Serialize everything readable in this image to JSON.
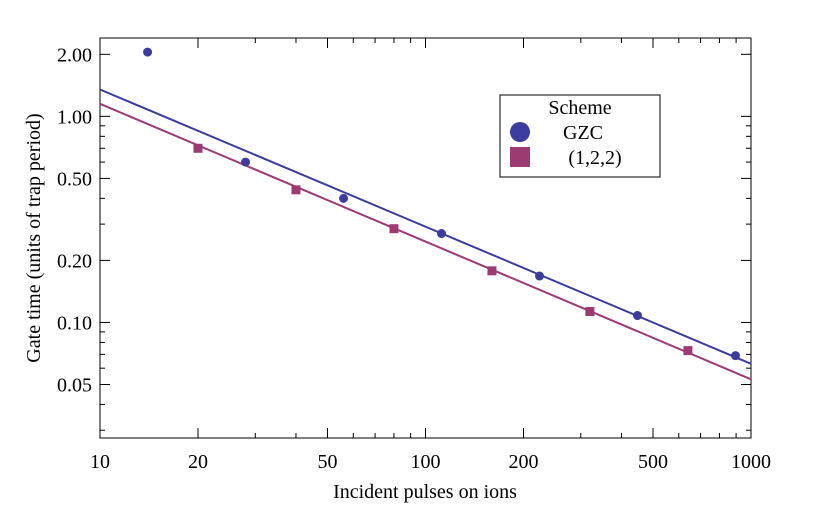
{
  "chart_data": {
    "type": "scatter",
    "xscale": "log",
    "yscale": "log",
    "xlim": [
      10,
      1000
    ],
    "ylim": [
      0.0275,
      2.4
    ],
    "xlabel": "Incident pulses on ions",
    "ylabel": "Gate time (units of trap period)",
    "x_ticks": [
      {
        "value": 10,
        "label": "10"
      },
      {
        "value": 20,
        "label": "20"
      },
      {
        "value": 50,
        "label": "50"
      },
      {
        "value": 100,
        "label": "100"
      },
      {
        "value": 200,
        "label": "200"
      },
      {
        "value": 500,
        "label": "500"
      },
      {
        "value": 1000,
        "label": "1000"
      }
    ],
    "y_ticks": [
      {
        "value": 2.0,
        "label": "2.00"
      },
      {
        "value": 1.0,
        "label": "1.00"
      },
      {
        "value": 0.5,
        "label": "0.50"
      },
      {
        "value": 0.2,
        "label": "0.20"
      },
      {
        "value": 0.1,
        "label": "0.10"
      },
      {
        "value": 0.05,
        "label": "0.05"
      }
    ],
    "legend": {
      "title": "Scheme",
      "position": "top-right",
      "entries": [
        "GZC",
        "(1,2,2)"
      ]
    },
    "series": [
      {
        "name": "GZC",
        "marker": "circle",
        "color": "#3b3c9e",
        "x": [
          14,
          28,
          56,
          112,
          224,
          448,
          896
        ],
        "y": [
          2.05,
          0.6,
          0.4,
          0.27,
          0.168,
          0.108,
          0.069
        ],
        "fit": {
          "x": [
            10,
            1000
          ],
          "y": [
            1.35,
            0.063
          ]
        }
      },
      {
        "name": "(1,2,2)",
        "marker": "square",
        "color": "#9c3a72",
        "x": [
          20,
          40,
          80,
          160,
          320,
          640
        ],
        "y": [
          0.7,
          0.44,
          0.285,
          0.178,
          0.113,
          0.073
        ],
        "fit": {
          "x": [
            10,
            1000
          ],
          "y": [
            1.15,
            0.053
          ]
        }
      }
    ]
  }
}
